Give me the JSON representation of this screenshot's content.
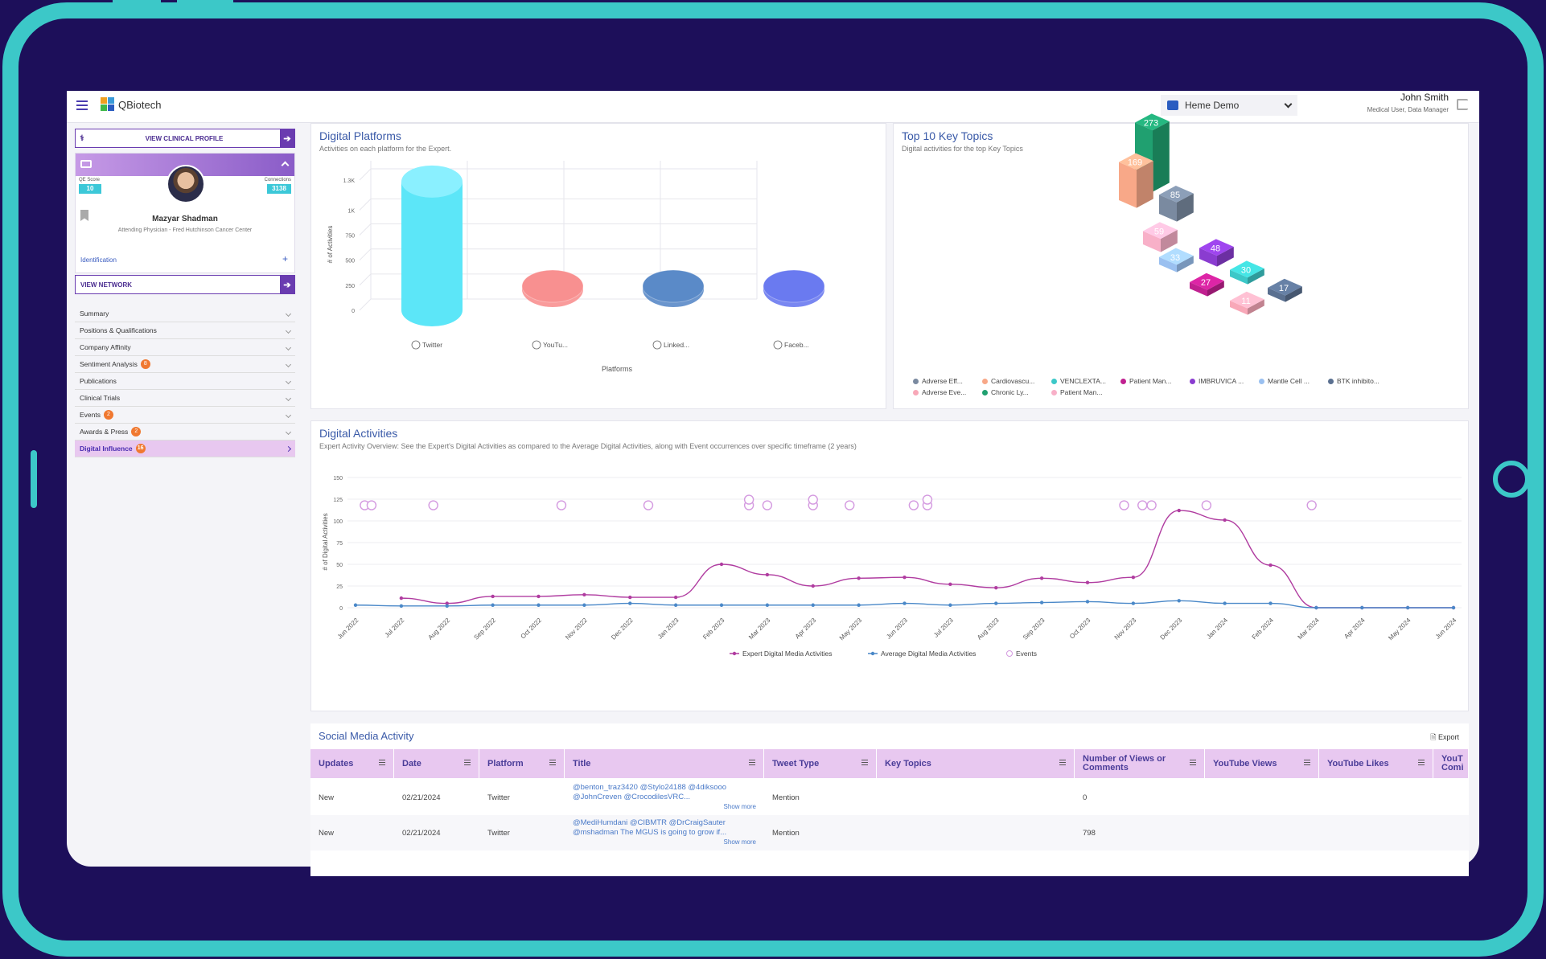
{
  "app": {
    "logo": "QBiotech",
    "demo_label": "Heme Demo",
    "user_name": "John Smith",
    "user_role": "Medical User, Data Manager"
  },
  "profile": {
    "view_clinical": "VIEW CLINICAL PROFILE",
    "qe_label": "QE Score",
    "qe_value": "10",
    "conn_label": "Connections",
    "conn_value": "3138",
    "name": "Mazyar Shadman",
    "title": "Attending Physician - Fred Hutchinson Cancer Center",
    "identification": "Identification",
    "view_network": "VIEW NETWORK"
  },
  "menu": [
    {
      "label": "Summary",
      "badge": ""
    },
    {
      "label": "Positions & Qualifications",
      "badge": ""
    },
    {
      "label": "Company Affinity",
      "badge": ""
    },
    {
      "label": "Sentiment Analysis",
      "badge": "8"
    },
    {
      "label": "Publications",
      "badge": ""
    },
    {
      "label": "Clinical Trials",
      "badge": ""
    },
    {
      "label": "Events",
      "badge": "2"
    },
    {
      "label": "Awards & Press",
      "badge": "2"
    },
    {
      "label": "Digital Influence",
      "badge": "16"
    }
  ],
  "platforms": {
    "title": "Digital Platforms",
    "subtitle": "Activities on each platform for the Expert.",
    "chart_data": {
      "type": "bar",
      "categories": [
        "Twitter",
        "YouTu...",
        "Linked...",
        "Faceb..."
      ],
      "values": [
        1285,
        0,
        0,
        0
      ],
      "colors": [
        "#5ce6f8",
        "#f89090",
        "#5a8ac8",
        "#6a7af0"
      ],
      "xlabel": "Platforms",
      "ylabel": "# of Activities",
      "yticks": [
        "0",
        "250",
        "500",
        "750",
        "1K",
        "1.3K"
      ],
      "ylim": [
        0,
        1300
      ]
    }
  },
  "topics": {
    "title": "Top 10 Key Topics",
    "subtitle": "Digital activities for the top Key Topics",
    "chart_data": {
      "type": "bar",
      "categories": [
        "Adverse Eff...",
        "Cardiovascu...",
        "VENCLEXTA...",
        "Patient Man...",
        "IMBRUVICA ...",
        "Mantle Cell ...",
        "BTK inhibito...",
        "Adverse Eve...",
        "Chronic Ly...",
        "Patient Man..."
      ],
      "values": [
        85,
        169,
        30,
        27,
        48,
        33,
        17,
        11,
        273,
        59
      ],
      "colors": [
        "#7a8aa0",
        "#f8a888",
        "#3cc8c8",
        "#c02090",
        "#8a3cd0",
        "#9ac0f0",
        "#5a7090",
        "#f8a8b8",
        "#20a070",
        "#f8b0c8"
      ]
    }
  },
  "activities": {
    "title": "Digital Activities",
    "subtitle": "Expert Activity Overview: See the Expert's Digital Activities as compared to the Average Digital Activities, along with Event occurrences over specific timeframe (2 years)",
    "chart_data": {
      "type": "line",
      "x": [
        "Jun 2022",
        "Jul 2022",
        "Aug 2022",
        "Sep 2022",
        "Oct 2022",
        "Nov 2022",
        "Dec 2022",
        "Jan 2023",
        "Feb 2023",
        "Mar 2023",
        "Apr 2023",
        "May 2023",
        "Jun 2023",
        "Jul 2023",
        "Aug 2023",
        "Sep 2023",
        "Oct 2023",
        "Nov 2023",
        "Dec 2023",
        "Jan 2024",
        "Feb 2024",
        "Mar 2024",
        "Apr 2024",
        "May 2024",
        "Jun 2024"
      ],
      "ylabel": "# of Digital Activities",
      "yticks": [
        "0",
        "25",
        "50",
        "75",
        "100",
        "125",
        "150"
      ],
      "ylim": [
        0,
        150
      ],
      "series": [
        {
          "name": "Expert Digital Media Activities",
          "color": "#b03ca0",
          "values": [
            null,
            11,
            5,
            13,
            13,
            15,
            12,
            12,
            50,
            38,
            25,
            34,
            35,
            27,
            23,
            34,
            29,
            35,
            112,
            101,
            49,
            0,
            0,
            0,
            0
          ]
        },
        {
          "name": "Average Digital Media Activities",
          "color": "#4a88c8",
          "values": [
            3,
            2,
            2,
            3,
            3,
            3,
            5,
            3,
            3,
            3,
            3,
            3,
            5,
            3,
            5,
            6,
            7,
            5,
            8,
            5,
            5,
            0,
            0,
            0,
            0
          ]
        }
      ],
      "events_name": "Events",
      "events_at": [
        0.2,
        0.35,
        1.7,
        4.5,
        6.4,
        8.6,
        8.6,
        9.0,
        10.0,
        10.0,
        10.8,
        12.2,
        12.5,
        12.5,
        16.8,
        17.2,
        17.4,
        18.6,
        20.9
      ],
      "events_y": 118
    }
  },
  "social": {
    "title": "Social Media Activity",
    "export": "Export",
    "columns": [
      "Updates",
      "Date",
      "Platform",
      "Title",
      "Tweet Type",
      "Key Topics",
      "Number of Views or Comments",
      "YouTube Views",
      "YouTube Likes",
      "YouT Comi"
    ],
    "rows": [
      {
        "updates": "New",
        "date": "02/21/2024",
        "platform": "Twitter",
        "title1": "@benton_traz3420 @Stylo24188 @4diksooo",
        "title2": "@JohnCreven @CrocodilesVRC...",
        "more": "Show more",
        "tweet_type": "Mention",
        "views": "0"
      },
      {
        "updates": "New",
        "date": "02/21/2024",
        "platform": "Twitter",
        "title1": "@MediHumdani @CIBMTR @DrCraigSauter",
        "title2": "@mshadman The MGUS is going to grow if...",
        "more": "Show more",
        "tweet_type": "Mention",
        "views": "798"
      }
    ]
  }
}
